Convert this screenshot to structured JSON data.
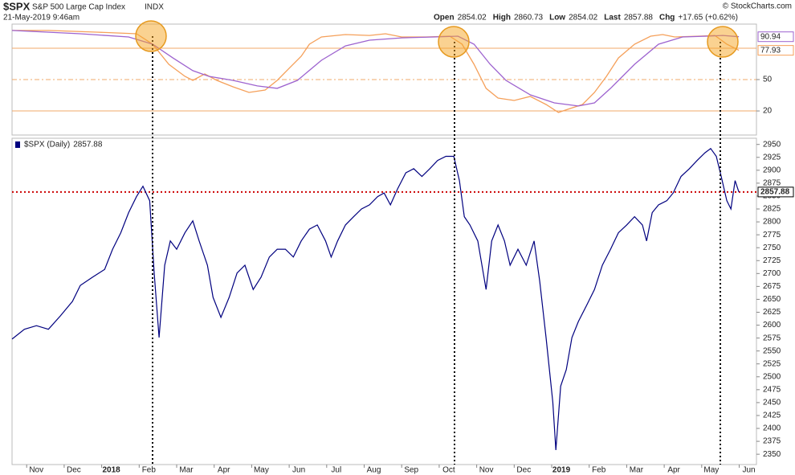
{
  "header": {
    "symbol": "$SPX",
    "description": "S&P 500 Large Cap Index",
    "exchange": "INDX",
    "datetime": "21-May-2019 9:46am",
    "quote": [
      {
        "label": "Open",
        "value": 2854.02
      },
      {
        "label": "High",
        "value": 2860.73
      },
      {
        "label": "Low",
        "value": 2854.02
      },
      {
        "label": "Last",
        "value": 2857.88
      },
      {
        "label": "Chg",
        "value": "+17.65 (+0.62%)"
      }
    ],
    "credit": "© StockCharts.com"
  },
  "chart_data": [
    {
      "type": "line",
      "xlim": [
        -0.39,
        19.46
      ],
      "ylim": [
        -3,
        103
      ],
      "yticks": [
        50,
        20
      ],
      "reference_lines": [
        80,
        50,
        20
      ],
      "reference_line_styles": [
        "solid",
        "dashed",
        "solid"
      ],
      "reference_line_color": "#f0a868",
      "series": [
        {
          "color": "#f5a05a",
          "x": [
            -0.39,
            0.58,
            1.86,
            2.93,
            3.36,
            3.79,
            4.22,
            4.43,
            4.75,
            5.07,
            5.5,
            5.93,
            6.36,
            6.68,
            7.0,
            7.32,
            7.54,
            7.86,
            8.5,
            9.14,
            9.57,
            10.0,
            10.64,
            11.28,
            11.61,
            11.93,
            12.25,
            12.57,
            13.0,
            13.43,
            13.85,
            14.18,
            14.5,
            14.82,
            15.14,
            15.46,
            15.78,
            16.21,
            16.64,
            16.96,
            17.28,
            17.92,
            18.35,
            18.67,
            18.99
          ],
          "values": [
            96.9,
            96.9,
            95.3,
            93.8,
            83.8,
            64.6,
            53.1,
            49.2,
            55.4,
            49.2,
            43.1,
            37.7,
            40.0,
            49.2,
            60.8,
            72.3,
            83.8,
            90.7,
            93.0,
            92.2,
            93.8,
            90.7,
            90.7,
            91.5,
            83.8,
            64.6,
            41.6,
            32.3,
            30.0,
            33.9,
            26.2,
            18.6,
            22.4,
            26.2,
            37.7,
            53.1,
            70.7,
            83.8,
            91.5,
            93.0,
            90.7,
            91.5,
            92.2,
            83.8,
            77.93
          ]
        },
        {
          "color": "#9d63cf",
          "x": [
            -0.39,
            1.43,
            2.72,
            3.36,
            3.9,
            4.43,
            4.86,
            5.5,
            6.15,
            6.68,
            7.22,
            7.86,
            8.5,
            9.14,
            10.0,
            10.86,
            11.5,
            11.93,
            12.36,
            12.78,
            13.43,
            14.07,
            14.71,
            15.14,
            15.57,
            16.21,
            16.85,
            17.49,
            18.14,
            18.56,
            18.99
          ],
          "values": [
            96.9,
            93.8,
            90.7,
            83.8,
            70.7,
            58.5,
            53.1,
            49.2,
            43.9,
            41.6,
            49.2,
            68.4,
            82.2,
            87.6,
            89.9,
            90.7,
            91.5,
            83.8,
            64.6,
            49.2,
            35.4,
            27.7,
            24.7,
            27.7,
            41.6,
            64.6,
            83.8,
            90.7,
            91.5,
            92.2,
            90.94
          ]
        }
      ]
    },
    {
      "type": "line",
      "xlim": [
        -0.39,
        19.46
      ],
      "ylim": [
        2330,
        2962
      ],
      "yticks": [
        2950,
        2925,
        2900,
        2875,
        2850,
        2825,
        2800,
        2775,
        2750,
        2725,
        2700,
        2675,
        2650,
        2625,
        2600,
        2575,
        2550,
        2525,
        2500,
        2475,
        2450,
        2425,
        2400,
        2375,
        2350
      ],
      "xticks": [
        {
          "value": 0,
          "label": "Nov"
        },
        {
          "value": 1,
          "label": "Dec"
        },
        {
          "value": 2,
          "label": "2018"
        },
        {
          "value": 3,
          "label": "Feb"
        },
        {
          "value": 4,
          "label": "Mar"
        },
        {
          "value": 5,
          "label": "Apr"
        },
        {
          "value": 6,
          "label": "May"
        },
        {
          "value": 7,
          "label": "Jun"
        },
        {
          "value": 8,
          "label": "Jul"
        },
        {
          "value": 9,
          "label": "Aug"
        },
        {
          "value": 10,
          "label": "Sep"
        },
        {
          "value": 11,
          "label": "Oct"
        },
        {
          "value": 12,
          "label": "Nov"
        },
        {
          "value": 13,
          "label": "Dec"
        },
        {
          "value": 14,
          "label": "2019"
        },
        {
          "value": 15,
          "label": "Feb"
        },
        {
          "value": 16,
          "label": "Mar"
        },
        {
          "value": 17,
          "label": "Apr"
        },
        {
          "value": 18,
          "label": "May"
        },
        {
          "value": 19,
          "label": "Jun"
        }
      ],
      "last_line_color": "#cc0000",
      "series": [
        {
          "name": "$SPX (Daily)",
          "color": "#00007f",
          "x": [
            -0.39,
            -0.06,
            0.26,
            0.58,
            0.9,
            1.22,
            1.43,
            1.76,
            2.08,
            2.29,
            2.51,
            2.72,
            2.93,
            3.1,
            3.28,
            3.4,
            3.53,
            3.68,
            3.83,
            4.0,
            4.22,
            4.43,
            4.6,
            4.82,
            4.97,
            5.18,
            5.4,
            5.61,
            5.82,
            6.04,
            6.25,
            6.47,
            6.68,
            6.9,
            7.11,
            7.32,
            7.54,
            7.75,
            7.97,
            8.12,
            8.29,
            8.5,
            8.72,
            8.93,
            9.14,
            9.36,
            9.53,
            9.7,
            9.89,
            10.11,
            10.32,
            10.54,
            10.75,
            10.96,
            11.18,
            11.39,
            11.54,
            11.67,
            11.82,
            12.03,
            12.25,
            12.4,
            12.57,
            12.74,
            12.89,
            13.1,
            13.32,
            13.53,
            13.68,
            13.85,
            14.03,
            14.11,
            14.24,
            14.39,
            14.54,
            14.71,
            14.93,
            15.14,
            15.35,
            15.57,
            15.78,
            16.0,
            16.21,
            16.42,
            16.53,
            16.68,
            16.85,
            17.07,
            17.24,
            17.45,
            17.67,
            17.88,
            18.09,
            18.24,
            18.39,
            18.52,
            18.67,
            18.78,
            18.89,
            18.99
          ],
          "values": [
            2573,
            2592,
            2599,
            2592,
            2618,
            2646,
            2677,
            2693,
            2708,
            2747,
            2779,
            2818,
            2849,
            2869,
            2841,
            2701,
            2576,
            2716,
            2763,
            2747,
            2779,
            2802,
            2763,
            2716,
            2654,
            2615,
            2654,
            2701,
            2716,
            2669,
            2693,
            2732,
            2747,
            2747,
            2732,
            2763,
            2786,
            2794,
            2763,
            2732,
            2763,
            2794,
            2810,
            2825,
            2833,
            2849,
            2856,
            2833,
            2864,
            2895,
            2903,
            2888,
            2903,
            2919,
            2927,
            2927,
            2880,
            2810,
            2794,
            2763,
            2669,
            2763,
            2794,
            2763,
            2716,
            2747,
            2716,
            2763,
            2685,
            2576,
            2451,
            2358,
            2482,
            2514,
            2576,
            2607,
            2638,
            2669,
            2716,
            2747,
            2779,
            2794,
            2810,
            2794,
            2763,
            2818,
            2833,
            2841,
            2856,
            2888,
            2903,
            2919,
            2934,
            2942,
            2927,
            2888,
            2841,
            2825,
            2880,
            2857.88
          ]
        }
      ]
    }
  ]
}
